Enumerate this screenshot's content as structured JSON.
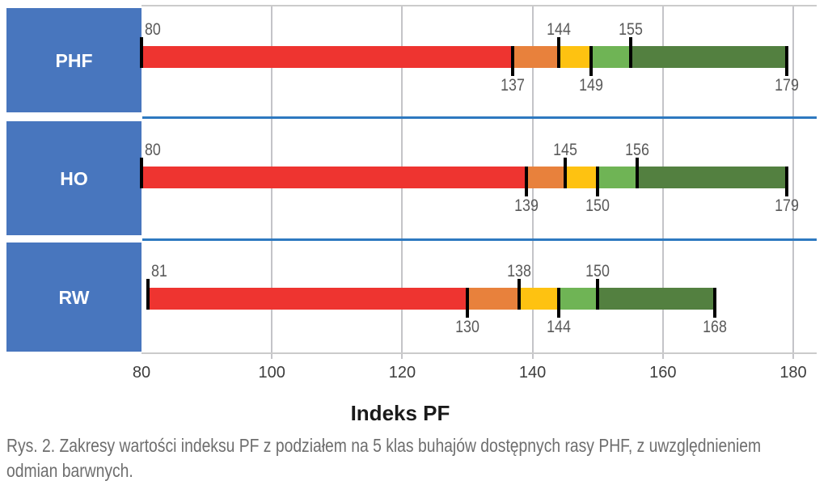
{
  "figure": {
    "caption_lines": [
      "Rys. 2. Zakresy wartości indeksu PF z podziałem na 5 klas buhajów dostępnych rasy PHF, z uwzględnieniem",
      "odmian barwnych."
    ]
  },
  "chart_data": {
    "type": "bar",
    "orientation": "horizontal-stacked-range",
    "title": "Indeks PF",
    "xlabel": "Indeks PF",
    "xlim": [
      80,
      180
    ],
    "x_ticks": [
      80,
      100,
      120,
      140,
      160,
      180
    ],
    "grid": "vertical",
    "legend": "none",
    "categories": [
      "PHF",
      "HO",
      "RW"
    ],
    "classes_per_row": 5,
    "segment_names": [
      "red",
      "orange",
      "yellow",
      "light-green",
      "dark-green"
    ],
    "series": [
      {
        "name": "PHF",
        "class_boundaries": [
          80,
          137,
          144,
          149,
          155,
          179
        ]
      },
      {
        "name": "HO",
        "class_boundaries": [
          80,
          139,
          145,
          150,
          156,
          179
        ]
      },
      {
        "name": "RW",
        "class_boundaries": [
          81,
          130,
          138,
          144,
          150,
          168
        ]
      }
    ],
    "colors": {
      "segments": [
        "#EE3430",
        "#E8813C",
        "#FEC211",
        "#6FB455",
        "#538040"
      ],
      "category_box": "#4876BE",
      "row_separator": "#2E79C0",
      "gridline": "#C4C4C8",
      "plot_border": "#CBCBCB",
      "tick_mark": "#000000",
      "value_label": "#595959",
      "axis_label": "#3D3D3D",
      "category_label": "#FFFFFF",
      "title": "#1A1A1A",
      "caption": "#6E6E6E"
    }
  }
}
